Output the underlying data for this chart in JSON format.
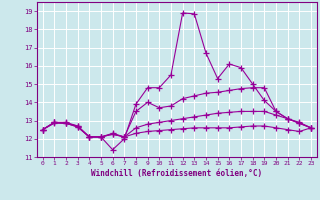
{
  "xlabel": "Windchill (Refroidissement éolien,°C)",
  "background_color": "#cce8ec",
  "grid_color": "#ffffff",
  "line_color": "#990099",
  "x_values": [
    0,
    1,
    2,
    3,
    4,
    5,
    6,
    7,
    8,
    9,
    10,
    11,
    12,
    13,
    14,
    15,
    16,
    17,
    18,
    19,
    20,
    21,
    22,
    23
  ],
  "series1": [
    12.5,
    12.9,
    12.9,
    12.7,
    12.1,
    12.1,
    11.4,
    12.0,
    13.9,
    14.8,
    14.8,
    15.5,
    18.9,
    18.85,
    16.7,
    15.3,
    16.1,
    15.9,
    15.0,
    14.1,
    13.5,
    13.1,
    12.9,
    12.6
  ],
  "series2": [
    12.5,
    12.9,
    12.85,
    12.7,
    12.1,
    12.1,
    12.3,
    12.1,
    13.5,
    14.0,
    13.7,
    13.8,
    14.2,
    14.35,
    14.5,
    14.55,
    14.65,
    14.75,
    14.8,
    14.8,
    13.5,
    13.1,
    12.85,
    12.6
  ],
  "series3": [
    12.5,
    12.9,
    12.85,
    12.65,
    12.1,
    12.1,
    12.25,
    12.1,
    12.6,
    12.8,
    12.9,
    13.0,
    13.1,
    13.2,
    13.3,
    13.4,
    13.45,
    13.5,
    13.5,
    13.5,
    13.3,
    13.1,
    12.85,
    12.6
  ],
  "series4": [
    12.5,
    12.85,
    12.85,
    12.65,
    12.1,
    12.1,
    12.25,
    12.1,
    12.3,
    12.4,
    12.45,
    12.5,
    12.55,
    12.6,
    12.6,
    12.6,
    12.6,
    12.65,
    12.7,
    12.7,
    12.6,
    12.5,
    12.4,
    12.6
  ],
  "ylim": [
    11,
    19.5
  ],
  "xlim": [
    -0.5,
    23.5
  ],
  "yticks": [
    11,
    12,
    13,
    14,
    15,
    16,
    17,
    18,
    19
  ],
  "xticks": [
    0,
    1,
    2,
    3,
    4,
    5,
    6,
    7,
    8,
    9,
    10,
    11,
    12,
    13,
    14,
    15,
    16,
    17,
    18,
    19,
    20,
    21,
    22,
    23
  ]
}
